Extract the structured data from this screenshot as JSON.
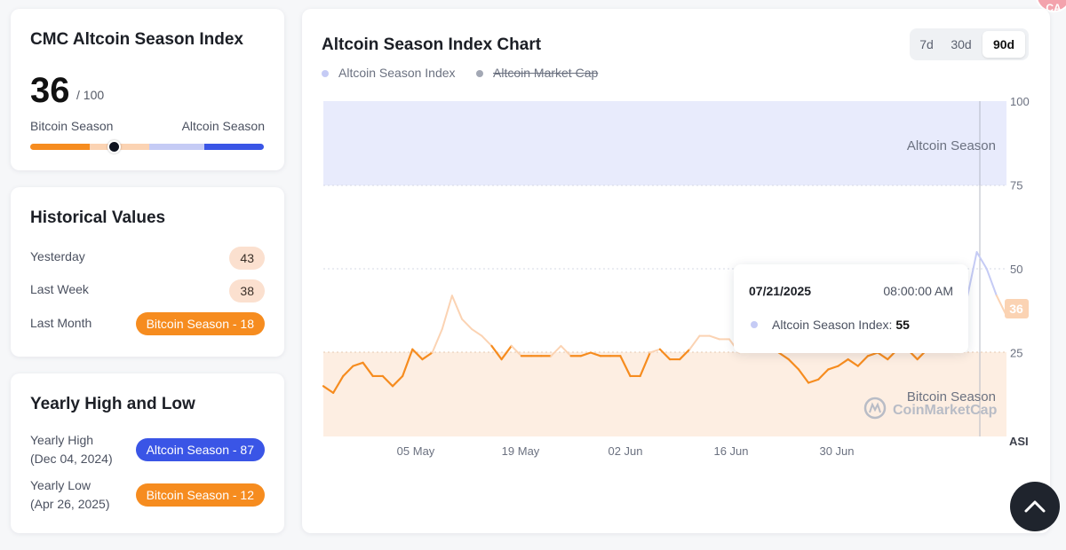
{
  "index_card": {
    "title": "CMC Altcoin Season Index",
    "value": "36",
    "max": "/ 100",
    "left_label": "Bitcoin Season",
    "right_label": "Altcoin Season",
    "gauge_value": 36
  },
  "historical": {
    "title": "Historical Values",
    "rows": [
      {
        "label": "Yesterday",
        "value": "43"
      },
      {
        "label": "Last Week",
        "value": "38"
      },
      {
        "label": "Last Month",
        "value": "Bitcoin Season - 18"
      }
    ]
  },
  "yearly": {
    "title": "Yearly High and Low",
    "high_label": "Yearly High",
    "high_date": "(Dec 04, 2024)",
    "high_value": "Altcoin Season - 87",
    "low_label": "Yearly Low",
    "low_date": "(Apr 26, 2025)",
    "low_value": "Bitcoin Season - 12"
  },
  "chart": {
    "title": "Altcoin Season Index Chart",
    "ranges": [
      "7d",
      "30d",
      "90d"
    ],
    "selected_range": "90d",
    "legend": [
      {
        "label": "Altcoin Season Index",
        "enabled": true
      },
      {
        "label": "Altcoin Market Cap",
        "enabled": false
      }
    ],
    "zone_top_label": "Altcoin Season",
    "zone_bottom_label": "Bitcoin Season",
    "watermark": "CoinMarketCap",
    "current_badge": "36",
    "axis_unit": "ASI",
    "tooltip": {
      "date": "07/21/2025",
      "time": "08:00:00 AM",
      "label": "Altcoin Season Index:",
      "value": "55"
    }
  },
  "chart_data": {
    "type": "line",
    "x_labels": [
      "05 May",
      "19 May",
      "02 Jun",
      "16 Jun",
      "30 Jun"
    ],
    "yticks": [
      25,
      50,
      75,
      100
    ],
    "ylim": [
      0,
      100
    ],
    "y": [
      15,
      13,
      18,
      21,
      22,
      18,
      18,
      15,
      18,
      26,
      23,
      25,
      32,
      42,
      35,
      32,
      30,
      27,
      23,
      27,
      24,
      24,
      24,
      24,
      27,
      24,
      24,
      25,
      24,
      24,
      24,
      18,
      18,
      25,
      26,
      23,
      23,
      26,
      30,
      30,
      29,
      29,
      25,
      28,
      27,
      28,
      25,
      23,
      20,
      16,
      17,
      20,
      21,
      23,
      21,
      24,
      25,
      23,
      26,
      26,
      23,
      26,
      28,
      29,
      31,
      41,
      55,
      50,
      42,
      36
    ],
    "series": [
      {
        "name": "Altcoin Season Index"
      }
    ]
  },
  "colors": {
    "orange": "#f68c1f",
    "light_orange": "#fbd3b3",
    "blue": "#3a55e6",
    "light_blue": "#c5cbf5",
    "zone_top": "#e8ebfc",
    "zone_bottom": "#fdeee2"
  },
  "icons": {
    "scroll_top": "chevron-up-icon",
    "watermark_logo": "coinmarketcap-logo"
  }
}
